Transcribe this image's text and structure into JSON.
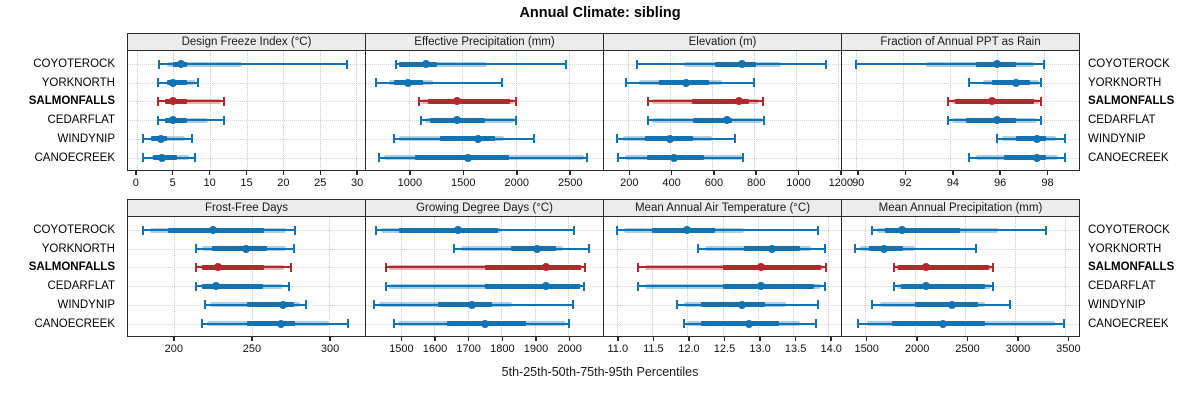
{
  "title": "Annual Climate: sibling",
  "caption": "5th-25th-50th-75th-95th Percentiles",
  "highlight_site": "SALMONFALLS",
  "sites": [
    {
      "name": "COYOTEROCK",
      "emphasis": false
    },
    {
      "name": "YORKNORTH",
      "emphasis": false
    },
    {
      "name": "SALMONFALLS",
      "emphasis": true
    },
    {
      "name": "CEDARFLAT",
      "emphasis": false
    },
    {
      "name": "WINDYNIP",
      "emphasis": false
    },
    {
      "name": "CANOECREEK",
      "emphasis": false
    }
  ],
  "colors": {
    "blue": "#1272b2",
    "blue_shade": "rgba(18,114,178,0.35)",
    "red": "#b3282d",
    "red_shade": "rgba(179,40,45,0.35)",
    "header_bg": "#ececec",
    "panel_border": "#2b2b2b",
    "grid": "#c9c9c9"
  },
  "chart_data": {
    "type": "scatter",
    "subtype": "percentile-dotplot",
    "layout": "2 rows x 4 columns, shared site rows",
    "percentiles_shown": [
      5,
      25,
      50,
      75,
      95
    ],
    "legend_position": "none",
    "grid": "dotted",
    "panels": [
      {
        "key": "design_freeze_index",
        "title": "Design Freeze Index (°C)",
        "domain": [
          -1.2,
          31.2
        ],
        "ticks": [
          0,
          5,
          10,
          15,
          20,
          25,
          30
        ],
        "tick_labels": [
          "0",
          "5",
          "10",
          "15",
          "20",
          "25",
          "30"
        ],
        "rows": [
          {
            "site": "COYOTEROCK",
            "p5": 3.0,
            "p25": 4.9,
            "p50": 6.0,
            "p75": 6.9,
            "p95": 28.8,
            "shade": [
              4.2,
              14.4
            ]
          },
          {
            "site": "YORKNORTH",
            "p5": 2.9,
            "p25": 4.2,
            "p50": 5.0,
            "p75": 6.9,
            "p95": 8.4,
            "shade": [
              4.2,
              8.0
            ]
          },
          {
            "site": "SALMONFALLS",
            "p5": 2.9,
            "p25": 3.8,
            "p50": 5.0,
            "p75": 6.9,
            "p95": 11.9,
            "shade": [
              3.8,
              11.5
            ]
          },
          {
            "site": "CEDARFLAT",
            "p5": 2.9,
            "p25": 3.8,
            "p50": 5.0,
            "p75": 6.9,
            "p95": 11.9,
            "shade": [
              3.8,
              9.7
            ]
          },
          {
            "site": "WINDYNIP",
            "p5": 0.9,
            "p25": 2.0,
            "p50": 3.3,
            "p75": 4.2,
            "p95": 7.5,
            "shade": [
              1.9,
              6.6
            ]
          },
          {
            "site": "CANOECREEK",
            "p5": 0.8,
            "p25": 2.2,
            "p50": 3.5,
            "p75": 5.5,
            "p95": 7.9,
            "shade": [
              2.1,
              7.1
            ]
          }
        ]
      },
      {
        "key": "effective_precipitation",
        "title": "Effective Precipitation (mm)",
        "domain": [
          590,
          2825
        ],
        "ticks": [
          1000,
          1500,
          2000,
          2500
        ],
        "tick_labels": [
          "1000",
          "1500",
          "2000",
          "2500"
        ],
        "rows": [
          {
            "site": "COYOTEROCK",
            "p5": 875,
            "p25": 905,
            "p50": 1160,
            "p75": 1255,
            "p95": 2480,
            "shade": [
              900,
              1730
            ]
          },
          {
            "site": "YORKNORTH",
            "p5": 680,
            "p25": 855,
            "p50": 985,
            "p75": 1125,
            "p95": 1870,
            "shade": [
              810,
              1225
            ]
          },
          {
            "site": "SALMONFALLS",
            "p5": 1090,
            "p25": 1175,
            "p50": 1445,
            "p75": 1950,
            "p95": 2000,
            "shade": [
              1110,
              1985
            ]
          },
          {
            "site": "CEDARFLAT",
            "p5": 1105,
            "p25": 1190,
            "p50": 1445,
            "p75": 1715,
            "p95": 2000,
            "shade": [
              1145,
              1985
            ]
          },
          {
            "site": "WINDYNIP",
            "p5": 855,
            "p25": 1285,
            "p50": 1650,
            "p75": 1810,
            "p95": 2170,
            "shade": [
              905,
              1890
            ]
          },
          {
            "site": "CANOECREEK",
            "p5": 715,
            "p25": 1050,
            "p50": 1555,
            "p75": 1940,
            "p95": 2670,
            "shade": [
              760,
              2650
            ]
          }
        ]
      },
      {
        "key": "elevation",
        "title": "Elevation (m)",
        "domain": [
          85,
          1215
        ],
        "ticks": [
          200,
          400,
          600,
          800,
          1000,
          1200
        ],
        "tick_labels": [
          "200",
          "400",
          "600",
          "800",
          "1000",
          "1200"
        ],
        "rows": [
          {
            "site": "COYOTEROCK",
            "p5": 240,
            "p25": 615,
            "p50": 745,
            "p75": 810,
            "p95": 1145,
            "shade": [
              465,
              930
            ]
          },
          {
            "site": "YORKNORTH",
            "p5": 190,
            "p25": 345,
            "p50": 475,
            "p75": 585,
            "p95": 800,
            "shade": [
              250,
              650
            ]
          },
          {
            "site": "SALMONFALLS",
            "p5": 295,
            "p25": 505,
            "p50": 730,
            "p75": 775,
            "p95": 845,
            "shade": [
              315,
              825
            ]
          },
          {
            "site": "CEDARFLAT",
            "p5": 295,
            "p25": 510,
            "p50": 670,
            "p75": 695,
            "p95": 850,
            "shade": [
              315,
              840
            ]
          },
          {
            "site": "WINDYNIP",
            "p5": 145,
            "p25": 280,
            "p50": 400,
            "p75": 510,
            "p95": 710,
            "shade": [
              175,
              600
            ]
          },
          {
            "site": "CANOECREEK",
            "p5": 150,
            "p25": 290,
            "p50": 420,
            "p75": 560,
            "p95": 750,
            "shade": [
              185,
              745
            ]
          }
        ]
      },
      {
        "key": "fraction_ppt_as_rain",
        "title": "Fraction of Annual PPT as Rain",
        "domain": [
          89.4,
          99.5
        ],
        "ticks": [
          90,
          92,
          94,
          96,
          98
        ],
        "tick_labels": [
          "90",
          "92",
          "94",
          "96",
          "98"
        ],
        "rows": [
          {
            "site": "COYOTEROCK",
            "p5": 90.0,
            "p25": 95.1,
            "p50": 96.0,
            "p75": 96.8,
            "p95": 98.0,
            "shade": [
              93.0,
              97.6
            ]
          },
          {
            "site": "YORKNORTH",
            "p5": 94.8,
            "p25": 95.8,
            "p50": 96.8,
            "p75": 97.4,
            "p95": 97.9,
            "shade": [
              95.4,
              97.8
            ]
          },
          {
            "site": "SALMONFALLS",
            "p5": 93.9,
            "p25": 94.2,
            "p50": 95.8,
            "p75": 97.6,
            "p95": 97.9,
            "shade": [
              94.1,
              97.8
            ]
          },
          {
            "site": "CEDARFLAT",
            "p5": 93.9,
            "p25": 94.7,
            "p50": 96.0,
            "p75": 96.8,
            "p95": 97.9,
            "shade": [
              94.1,
              97.7
            ]
          },
          {
            "site": "WINDYNIP",
            "p5": 96.0,
            "p25": 96.8,
            "p50": 97.7,
            "p75": 98.1,
            "p95": 98.9,
            "shade": [
              96.2,
              98.5
            ]
          },
          {
            "site": "CANOECREEK",
            "p5": 94.8,
            "p25": 96.3,
            "p50": 97.7,
            "p75": 98.1,
            "p95": 98.9,
            "shade": [
              95.1,
              98.6
            ]
          }
        ]
      },
      {
        "key": "frost_free_days",
        "title": "Frost-Free Days",
        "domain": [
          170,
          323
        ],
        "ticks": [
          200,
          250,
          300
        ],
        "tick_labels": [
          "200",
          "250",
          "300"
        ],
        "rows": [
          {
            "site": "COYOTEROCK",
            "p5": 180,
            "p25": 196,
            "p50": 225,
            "p75": 258,
            "p95": 278,
            "shade": [
              184,
              272
            ]
          },
          {
            "site": "YORKNORTH",
            "p5": 214,
            "p25": 224,
            "p50": 246,
            "p75": 260,
            "p95": 277,
            "shade": [
              218,
              272
            ]
          },
          {
            "site": "SALMONFALLS",
            "p5": 214,
            "p25": 218,
            "p50": 228,
            "p75": 258,
            "p95": 275,
            "shade": [
              217,
              271
            ]
          },
          {
            "site": "CEDARFLAT",
            "p5": 214,
            "p25": 218,
            "p50": 227,
            "p75": 257,
            "p95": 274,
            "shade": [
              217,
              270
            ]
          },
          {
            "site": "WINDYNIP",
            "p5": 220,
            "p25": 247,
            "p50": 270,
            "p75": 277,
            "p95": 285,
            "shade": [
              223,
              281
            ]
          },
          {
            "site": "CANOECREEK",
            "p5": 218,
            "p25": 247,
            "p50": 269,
            "p75": 278,
            "p95": 312,
            "shade": [
              221,
              300
            ]
          }
        ]
      },
      {
        "key": "growing_degree_days",
        "title": "Growing Degree Days (°C)",
        "domain": [
          1395,
          2105
        ],
        "ticks": [
          1500,
          1600,
          1700,
          1800,
          1900,
          2000
        ],
        "tick_labels": [
          "1500",
          "1600",
          "1700",
          "1800",
          "1900",
          "2000"
        ],
        "rows": [
          {
            "site": "COYOTEROCK",
            "p5": 1425,
            "p25": 1495,
            "p50": 1670,
            "p75": 1790,
            "p95": 2018,
            "shade": [
              1440,
              1800
            ]
          },
          {
            "site": "YORKNORTH",
            "p5": 1660,
            "p25": 1828,
            "p50": 1907,
            "p75": 1965,
            "p95": 2062,
            "shade": [
              1680,
              1985
            ]
          },
          {
            "site": "SALMONFALLS",
            "p5": 1455,
            "p25": 1752,
            "p50": 1933,
            "p75": 2038,
            "p95": 2050,
            "shade": [
              1465,
              2042
            ]
          },
          {
            "site": "CEDARFLAT",
            "p5": 1455,
            "p25": 1752,
            "p50": 1935,
            "p75": 2035,
            "p95": 2048,
            "shade": [
              1465,
              2040
            ]
          },
          {
            "site": "WINDYNIP",
            "p5": 1419,
            "p25": 1611,
            "p50": 1712,
            "p75": 1773,
            "p95": 2015,
            "shade": [
              1434,
              1833
            ]
          },
          {
            "site": "CANOECREEK",
            "p5": 1478,
            "p25": 1638,
            "p50": 1750,
            "p75": 1874,
            "p95": 2002,
            "shade": [
              1490,
              1995
            ]
          }
        ]
      },
      {
        "key": "mean_annual_air_temperature",
        "title": "Mean Annual Air Temperature (°C)",
        "domain": [
          10.82,
          14.18
        ],
        "ticks": [
          11.0,
          11.5,
          12.0,
          12.5,
          13.0,
          13.5,
          14.0
        ],
        "tick_labels": [
          "11.0",
          "11.5",
          "12.0",
          "12.5",
          "13.0",
          "13.5",
          "14.0"
        ],
        "rows": [
          {
            "site": "COYOTEROCK",
            "p5": 11.0,
            "p25": 11.5,
            "p50": 12.0,
            "p75": 12.4,
            "p95": 13.85,
            "shade": [
              11.1,
              12.8
            ]
          },
          {
            "site": "YORKNORTH",
            "p5": 12.15,
            "p25": 12.8,
            "p50": 13.2,
            "p75": 13.6,
            "p95": 13.95,
            "shade": [
              12.25,
              13.75
            ]
          },
          {
            "site": "SALMONFALLS",
            "p5": 11.3,
            "p25": 12.5,
            "p50": 13.05,
            "p75": 13.9,
            "p95": 13.97,
            "shade": [
              11.4,
              13.92
            ]
          },
          {
            "site": "CEDARFLAT",
            "p5": 11.3,
            "p25": 12.5,
            "p50": 13.05,
            "p75": 13.8,
            "p95": 13.95,
            "shade": [
              11.4,
              13.9
            ]
          },
          {
            "site": "WINDYNIP",
            "p5": 11.85,
            "p25": 12.2,
            "p50": 12.77,
            "p75": 13.1,
            "p95": 13.85,
            "shade": [
              11.95,
              13.4
            ]
          },
          {
            "site": "CANOECREEK",
            "p5": 11.95,
            "p25": 12.2,
            "p50": 12.88,
            "p75": 13.3,
            "p95": 13.83,
            "shade": [
              12.0,
              13.6
            ]
          }
        ]
      },
      {
        "key": "mean_annual_precipitation",
        "title": "Mean Annual Precipitation (mm)",
        "domain": [
          1275,
          3645
        ],
        "ticks": [
          1500,
          2000,
          2500,
          3000,
          3500
        ],
        "tick_labels": [
          "1500",
          "2000",
          "2500",
          "3000",
          "3500"
        ],
        "rows": [
          {
            "site": "COYOTEROCK",
            "p5": 1580,
            "p25": 1700,
            "p50": 1870,
            "p75": 2450,
            "p95": 3310,
            "shade": [
              1620,
              2830
            ]
          },
          {
            "site": "YORKNORTH",
            "p5": 1400,
            "p25": 1545,
            "p50": 1690,
            "p75": 1880,
            "p95": 2610,
            "shade": [
              1450,
              2000
            ]
          },
          {
            "site": "SALMONFALLS",
            "p5": 1790,
            "p25": 1835,
            "p50": 2115,
            "p75": 2740,
            "p95": 2780,
            "shade": [
              1810,
              2760
            ]
          },
          {
            "site": "CEDARFLAT",
            "p5": 1790,
            "p25": 1860,
            "p50": 2110,
            "p75": 2700,
            "p95": 2780,
            "shade": [
              1820,
              2760
            ]
          },
          {
            "site": "WINDYNIP",
            "p5": 1580,
            "p25": 2000,
            "p50": 2370,
            "p75": 2630,
            "p95": 2950,
            "shade": [
              1650,
              2700
            ]
          },
          {
            "site": "CANOECREEK",
            "p5": 1430,
            "p25": 1770,
            "p50": 2280,
            "p75": 2700,
            "p95": 3490,
            "shade": [
              1520,
              3400
            ]
          }
        ]
      }
    ]
  }
}
